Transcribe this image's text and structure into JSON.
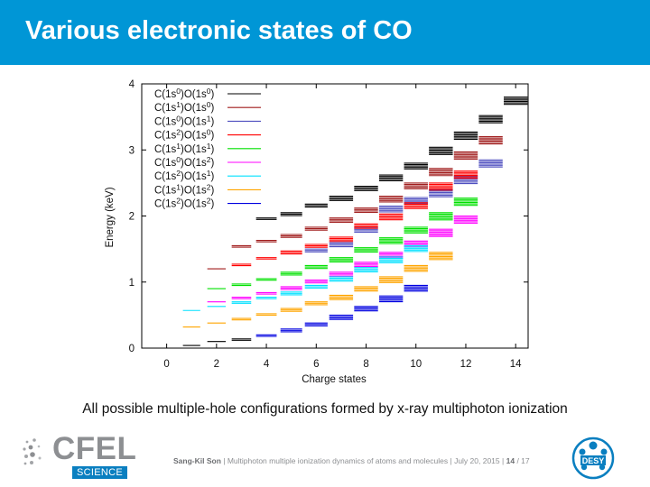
{
  "slide": {
    "title": "Various electronic states of CO",
    "caption": "All possible multiple-hole configurations formed by x-ray multiphoton ionization",
    "footer": {
      "author": "Sang-Kil Son",
      "talk": "Multiphoton multiple ionization dynamics of atoms and molecules",
      "date": "July 20, 2015",
      "page": "14",
      "total": "17"
    },
    "logos": {
      "left_name": "CFEL",
      "left_sub": "SCIENCE",
      "right_name": "DESY"
    }
  },
  "chart_data": {
    "type": "scatter",
    "xlabel": "Charge states",
    "ylabel": "Energy (keV)",
    "xlim": [
      -1,
      14.5
    ],
    "ylim": [
      0,
      4
    ],
    "xticks": [
      0,
      2,
      4,
      6,
      8,
      10,
      12,
      14
    ],
    "yticks": [
      0,
      1,
      2,
      3,
      4
    ],
    "legend_position": "top-left",
    "series": [
      {
        "name": "C(1s0)O(1s0)",
        "label": {
          "t1": "C(1s",
          "s1": "0",
          "t2": ")O(1s",
          "s2": "0",
          "t3": ")"
        },
        "color": "#000000",
        "points": [
          [
            0,
            0
          ],
          [
            1,
            0.04
          ],
          [
            2,
            0.1
          ],
          [
            3,
            0.14
          ],
          [
            4,
            1.97
          ],
          [
            5,
            2.05
          ],
          [
            6,
            2.18
          ],
          [
            7,
            2.3
          ],
          [
            8,
            2.45
          ],
          [
            9,
            2.62
          ],
          [
            10,
            2.8
          ],
          [
            11,
            3.04
          ],
          [
            12,
            3.27
          ],
          [
            13,
            3.52
          ],
          [
            14,
            3.8
          ]
        ]
      },
      {
        "name": "C(1s1)O(1s0)",
        "label": {
          "t1": "C(1s",
          "s1": "1",
          "t2": ")O(1s",
          "s2": "0",
          "t3": ")"
        },
        "color": "#a01c1c",
        "points": [
          [
            2,
            1.2
          ],
          [
            3,
            1.55
          ],
          [
            4,
            1.63
          ],
          [
            5,
            1.72
          ],
          [
            6,
            1.83
          ],
          [
            7,
            1.97
          ],
          [
            8,
            2.12
          ],
          [
            9,
            2.3
          ],
          [
            10,
            2.5
          ],
          [
            11,
            2.72
          ],
          [
            12,
            2.97
          ],
          [
            13,
            3.2
          ]
        ]
      },
      {
        "name": "C(1s0)O(1s1)",
        "label": {
          "t1": "C(1s",
          "s1": "0",
          "t2": ")O(1s",
          "s2": "1",
          "t3": ")"
        },
        "color": "#5050c0",
        "points": [
          [
            6,
            1.5
          ],
          [
            7,
            1.6
          ],
          [
            8,
            1.82
          ],
          [
            9,
            2.15
          ],
          [
            10,
            2.28
          ],
          [
            11,
            2.4
          ],
          [
            12,
            2.6
          ],
          [
            13,
            2.85
          ]
        ]
      },
      {
        "name": "C(1s2)O(1s0)",
        "label": {
          "t1": "C(1s",
          "s1": "2",
          "t2": ")O(1s",
          "s2": "0",
          "t3": ")"
        },
        "color": "#ff0000",
        "points": [
          [
            3,
            1.27
          ],
          [
            4,
            1.37
          ],
          [
            5,
            1.47
          ],
          [
            6,
            1.57
          ],
          [
            7,
            1.68
          ],
          [
            8,
            1.88
          ],
          [
            9,
            2.03
          ],
          [
            10,
            2.2
          ],
          [
            11,
            2.5
          ],
          [
            12,
            2.68
          ]
        ]
      },
      {
        "name": "C(1s1)O(1s1)",
        "label": {
          "t1": "C(1s",
          "s1": "1",
          "t2": ")O(1s",
          "s2": "1",
          "t3": ")"
        },
        "color": "#00e000",
        "points": [
          [
            2,
            0.9
          ],
          [
            3,
            0.97
          ],
          [
            4,
            1.05
          ],
          [
            5,
            1.15
          ],
          [
            6,
            1.25
          ],
          [
            7,
            1.37
          ],
          [
            8,
            1.52
          ],
          [
            9,
            1.67
          ],
          [
            10,
            1.83
          ],
          [
            11,
            2.05
          ],
          [
            12,
            2.27
          ]
        ]
      },
      {
        "name": "C(1s0)O(1s2)",
        "label": {
          "t1": "C(1s",
          "s1": "0",
          "t2": ")O(1s",
          "s2": "2",
          "t3": ")"
        },
        "color": "#ff00ff",
        "points": [
          [
            2,
            0.7
          ],
          [
            3,
            0.77
          ],
          [
            4,
            0.84
          ],
          [
            5,
            0.93
          ],
          [
            6,
            1.03
          ],
          [
            7,
            1.15
          ],
          [
            8,
            1.3
          ],
          [
            9,
            1.45
          ],
          [
            10,
            1.62
          ],
          [
            11,
            1.8
          ],
          [
            12,
            2.0
          ]
        ]
      },
      {
        "name": "C(1s2)O(1s1)",
        "label": {
          "t1": "C(1s",
          "s1": "2",
          "t2": ")O(1s",
          "s2": "1",
          "t3": ")"
        },
        "color": "#00e0ff",
        "points": [
          [
            1,
            0.57
          ],
          [
            2,
            0.63
          ],
          [
            3,
            0.7
          ],
          [
            4,
            0.77
          ],
          [
            5,
            0.85
          ],
          [
            6,
            0.95
          ],
          [
            7,
            1.08
          ],
          [
            8,
            1.22
          ],
          [
            9,
            1.38
          ],
          [
            10,
            1.55
          ]
        ]
      },
      {
        "name": "C(1s1)O(1s2)",
        "label": {
          "t1": "C(1s",
          "s1": "1",
          "t2": ")O(1s",
          "s2": "2",
          "t3": ")"
        },
        "color": "#ffa500",
        "points": [
          [
            1,
            0.32
          ],
          [
            2,
            0.38
          ],
          [
            3,
            0.45
          ],
          [
            4,
            0.52
          ],
          [
            5,
            0.6
          ],
          [
            6,
            0.7
          ],
          [
            7,
            0.8
          ],
          [
            8,
            0.93
          ],
          [
            9,
            1.08
          ],
          [
            10,
            1.25
          ],
          [
            11,
            1.45
          ]
        ]
      },
      {
        "name": "C(1s2)O(1s2)",
        "label": {
          "t1": "C(1s",
          "s1": "2",
          "t2": ")O(1s",
          "s2": "2",
          "t3": ")"
        },
        "color": "#0000e0",
        "points": [
          [
            4,
            0.2
          ],
          [
            5,
            0.29
          ],
          [
            6,
            0.38
          ],
          [
            7,
            0.5
          ],
          [
            8,
            0.63
          ],
          [
            9,
            0.79
          ],
          [
            10,
            0.95
          ]
        ]
      }
    ]
  }
}
